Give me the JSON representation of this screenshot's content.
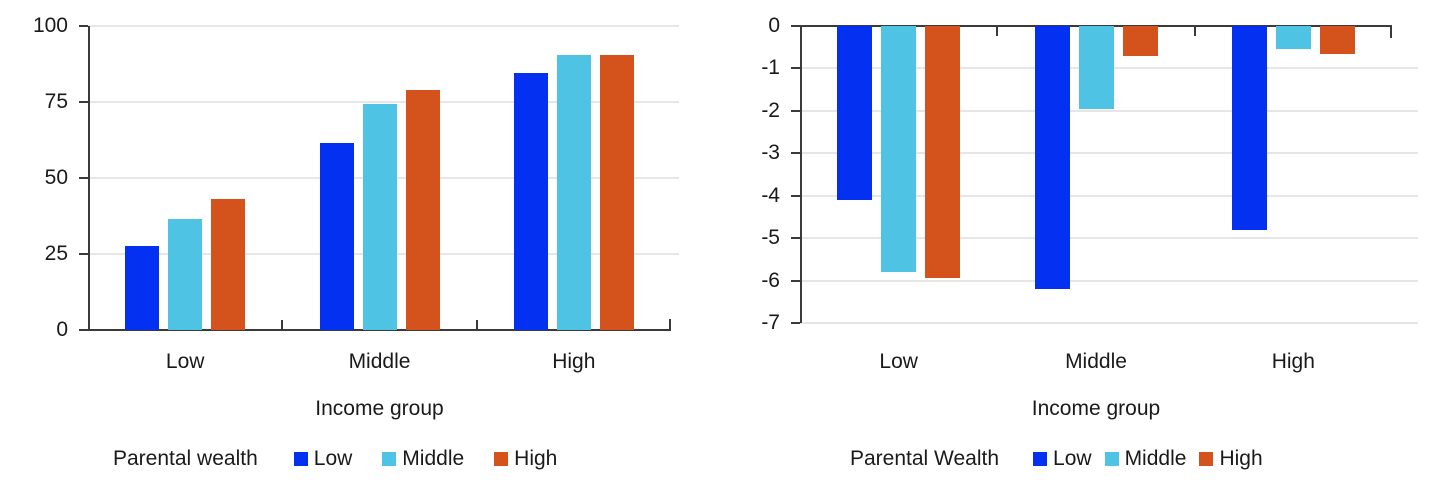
{
  "figure": {
    "background": "#ffffff"
  },
  "palette": {
    "series_low": "#0430f2",
    "series_middle": "#4ec3e4",
    "series_high": "#d4521b",
    "grid": "#e6e6e6",
    "axis": "#3a3a3a",
    "text": "#1a1a1a"
  },
  "chart_data": [
    {
      "type": "bar",
      "title": "",
      "xlabel": "Income group",
      "ylabel": "",
      "categories": [
        "Low",
        "Middle",
        "High"
      ],
      "series": [
        {
          "name": "Low",
          "color": "#0430f2",
          "values": [
            27.5,
            61.5,
            84.5
          ]
        },
        {
          "name": "Middle",
          "color": "#4ec3e4",
          "values": [
            36.5,
            74.5,
            90.5
          ]
        },
        {
          "name": "High",
          "color": "#d4521b",
          "values": [
            43,
            79,
            90.5
          ]
        }
      ],
      "ylim": [
        0,
        100
      ],
      "yticks": [
        0,
        25,
        50,
        75,
        100
      ],
      "grid": true,
      "legend_title": "Parental wealth",
      "legend_labels": [
        "Low",
        "Middle",
        "High"
      ],
      "legend_position": "bottom"
    },
    {
      "type": "bar",
      "title": "",
      "xlabel": "Income group",
      "ylabel": "",
      "categories": [
        "Low",
        "Middle",
        "High"
      ],
      "series": [
        {
          "name": "Low",
          "color": "#0430f2",
          "values": [
            -4.1,
            -6.2,
            -4.8
          ]
        },
        {
          "name": "Middle",
          "color": "#4ec3e4",
          "values": [
            -5.8,
            -1.95,
            -0.55
          ]
        },
        {
          "name": "High",
          "color": "#d4521b",
          "values": [
            -5.95,
            -0.7,
            -0.65
          ]
        }
      ],
      "ylim": [
        -7,
        0
      ],
      "yticks": [
        0,
        -1,
        -2,
        -3,
        -4,
        -5,
        -6,
        -7
      ],
      "grid": true,
      "legend_title": "Parental Wealth",
      "legend_labels": [
        "Low",
        "Middle",
        "High"
      ],
      "legend_position": "bottom"
    }
  ]
}
